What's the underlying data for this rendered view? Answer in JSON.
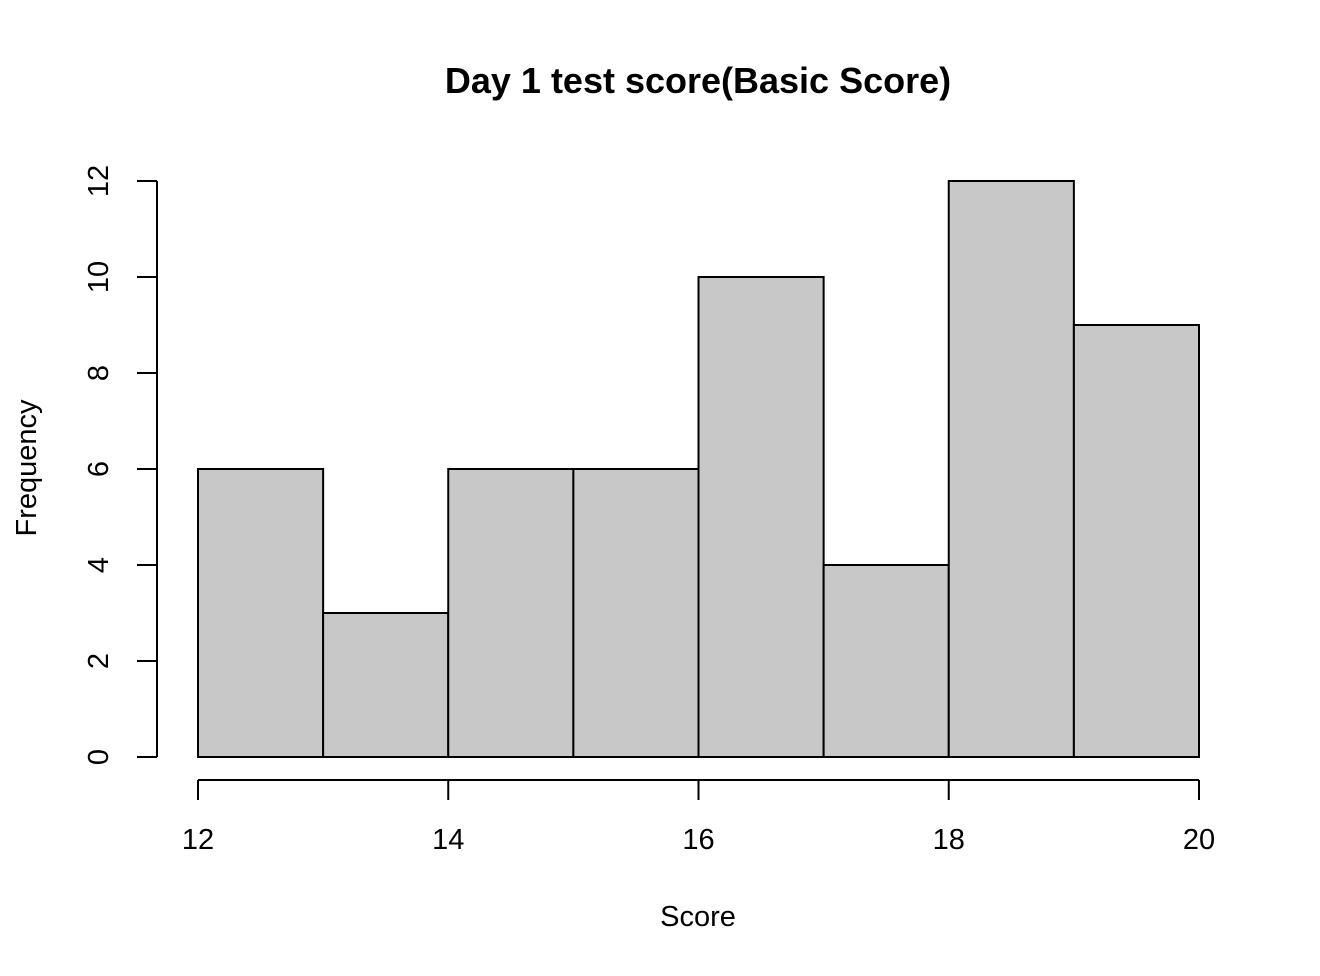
{
  "chart_data": {
    "type": "bar",
    "title": "Day 1 test score(Basic Score)",
    "xlabel": "Score",
    "ylabel": "Frequency",
    "bins": [
      {
        "start": 12,
        "end": 13,
        "count": 6
      },
      {
        "start": 13,
        "end": 14,
        "count": 3
      },
      {
        "start": 14,
        "end": 15,
        "count": 6
      },
      {
        "start": 15,
        "end": 16,
        "count": 6
      },
      {
        "start": 16,
        "end": 17,
        "count": 10
      },
      {
        "start": 17,
        "end": 18,
        "count": 4
      },
      {
        "start": 18,
        "end": 19,
        "count": 12
      },
      {
        "start": 19,
        "end": 20,
        "count": 9
      }
    ],
    "x_ticks": [
      12,
      14,
      16,
      18,
      20
    ],
    "y_ticks": [
      0,
      2,
      4,
      6,
      8,
      10,
      12
    ],
    "xlim": [
      12,
      20
    ],
    "ylim": [
      0,
      12
    ],
    "bar_color": "#c8c8c8",
    "edge_color": "#000000",
    "grid": false,
    "legend": "none"
  }
}
